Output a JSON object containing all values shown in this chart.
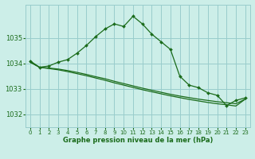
{
  "title": "Graphe pression niveau de la mer (hPa)",
  "background_color": "#cceee8",
  "grid_color": "#99cccc",
  "line_color": "#1a6b1a",
  "marker_color": "#1a6b1a",
  "ylim": [
    1031.5,
    1036.3
  ],
  "xlim": [
    -0.5,
    23.5
  ],
  "yticks": [
    1032,
    1033,
    1034,
    1035
  ],
  "xticks": [
    0,
    1,
    2,
    3,
    4,
    5,
    6,
    7,
    8,
    9,
    10,
    11,
    12,
    13,
    14,
    15,
    16,
    17,
    18,
    19,
    20,
    21,
    22,
    23
  ],
  "series1_x": [
    0,
    1,
    2,
    3,
    4,
    5,
    6,
    7,
    8,
    9,
    10,
    11,
    12,
    13,
    14,
    15,
    16,
    17,
    18,
    19,
    20,
    21,
    22,
    23
  ],
  "series1_y": [
    1034.1,
    1033.85,
    1033.9,
    1034.05,
    1034.15,
    1034.4,
    1034.7,
    1035.05,
    1035.35,
    1035.55,
    1035.45,
    1035.85,
    1035.55,
    1035.15,
    1034.85,
    1034.55,
    1033.5,
    1033.15,
    1033.05,
    1032.85,
    1032.75,
    1032.35,
    1032.55,
    1032.65
  ],
  "series2_x": [
    0,
    1,
    2,
    3,
    4,
    5,
    6,
    7,
    8,
    9,
    10,
    11,
    12,
    13,
    14,
    15,
    16,
    17,
    18,
    19,
    20,
    21,
    22,
    23
  ],
  "series2_y": [
    1034.05,
    1033.85,
    1033.82,
    1033.78,
    1033.72,
    1033.65,
    1033.57,
    1033.48,
    1033.4,
    1033.3,
    1033.21,
    1033.12,
    1033.03,
    1032.95,
    1032.87,
    1032.79,
    1032.72,
    1032.66,
    1032.6,
    1032.55,
    1032.5,
    1032.46,
    1032.42,
    1032.6
  ],
  "series3_x": [
    0,
    1,
    2,
    3,
    4,
    5,
    6,
    7,
    8,
    9,
    10,
    11,
    12,
    13,
    14,
    15,
    16,
    17,
    18,
    19,
    20,
    21,
    22,
    23
  ],
  "series3_y": [
    1034.05,
    1033.85,
    1033.8,
    1033.75,
    1033.68,
    1033.6,
    1033.52,
    1033.43,
    1033.34,
    1033.24,
    1033.15,
    1033.06,
    1032.97,
    1032.89,
    1032.81,
    1032.73,
    1032.66,
    1032.59,
    1032.53,
    1032.47,
    1032.42,
    1032.38,
    1032.33,
    1032.6
  ]
}
